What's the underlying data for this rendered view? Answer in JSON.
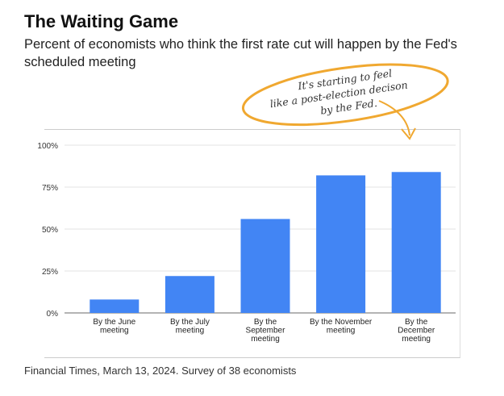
{
  "title": "The Waiting Game",
  "subtitle": "Percent of economists who think the first rate cut will happen by the Fed's scheduled meeting",
  "source": "Financial Times, March 13, 2024. Survey of 38 economists",
  "annotation": {
    "lines": [
      "It's starting to feel",
      "like a post-election decison",
      "by the Fed."
    ],
    "color": "#f0a830"
  },
  "chart_data": {
    "type": "bar",
    "title": "",
    "xlabel": "",
    "ylabel": "",
    "categories": [
      [
        "By the June",
        "meeting"
      ],
      [
        "By the July",
        "meeting"
      ],
      [
        "By the",
        "September",
        "meeting"
      ],
      [
        "By the November",
        "meeting"
      ],
      [
        "By the",
        "December",
        "meeting"
      ]
    ],
    "values": [
      8,
      22,
      56,
      82,
      84
    ],
    "ylim": [
      0,
      100
    ],
    "yticks": [
      0,
      25,
      50,
      75,
      100
    ],
    "ytick_labels": [
      "0%",
      "25%",
      "50%",
      "75%",
      "100%"
    ],
    "grid": true,
    "bar_color": "#4285f4"
  }
}
